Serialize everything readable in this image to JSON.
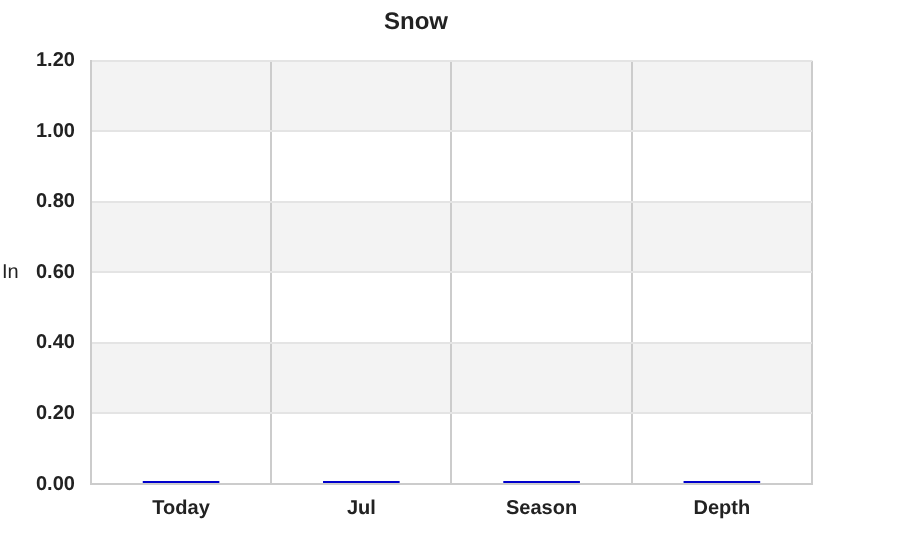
{
  "chart_data": {
    "type": "bar",
    "title": "Snow",
    "ylabel": "In",
    "categories": [
      "Today",
      "Jul",
      "Season",
      "Depth"
    ],
    "values": [
      0,
      0,
      0,
      0
    ],
    "color": "#0000cc",
    "ylim": [
      0,
      1.2
    ],
    "yticks": [
      {
        "value": 0,
        "label": "0.00"
      },
      {
        "value": 0.2,
        "label": "0.20"
      },
      {
        "value": 0.4,
        "label": "0.40"
      },
      {
        "value": 0.6,
        "label": "0.60"
      },
      {
        "value": 0.8,
        "label": "0.80"
      },
      {
        "value": 1,
        "label": "1.00"
      },
      {
        "value": 1.2,
        "label": "1.20"
      }
    ],
    "grid": true,
    "legend": false
  }
}
